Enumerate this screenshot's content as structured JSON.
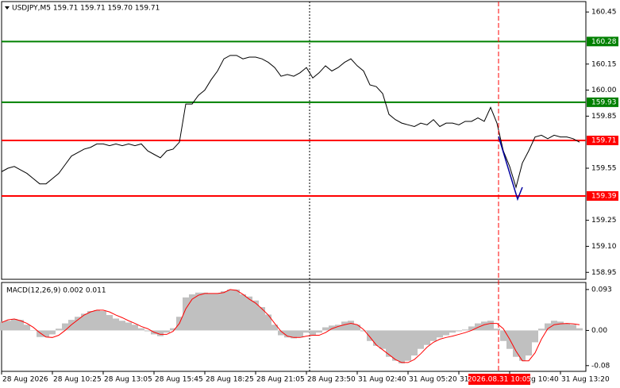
{
  "chart_data": [
    {
      "type": "line",
      "header": "USDJPY,M5  159.71 159.71 159.70 159.71",
      "x": [
        0,
        4,
        8,
        12,
        16,
        20,
        24,
        28,
        32,
        36,
        40,
        44,
        48,
        52,
        56,
        60,
        64,
        68,
        72,
        76,
        80,
        84,
        88,
        92,
        96,
        100,
        104,
        108,
        112,
        116,
        120,
        124,
        128,
        132,
        136,
        140,
        144,
        148,
        152,
        156,
        160,
        164,
        168,
        172,
        176,
        180,
        184,
        188,
        192,
        196,
        200,
        204,
        208,
        212,
        216,
        220,
        224,
        228,
        232,
        236,
        240,
        244,
        248,
        252,
        256,
        260,
        264,
        268,
        272,
        276,
        280,
        284,
        288,
        292,
        296,
        300,
        304,
        308,
        312,
        316,
        320,
        324,
        328,
        332,
        336,
        340,
        344,
        348,
        352,
        356,
        360,
        364
      ],
      "values": [
        159.53,
        159.55,
        159.56,
        159.54,
        159.52,
        159.49,
        159.46,
        159.46,
        159.49,
        159.52,
        159.57,
        159.62,
        159.64,
        159.66,
        159.67,
        159.69,
        159.69,
        159.68,
        159.69,
        159.68,
        159.69,
        159.68,
        159.69,
        159.65,
        159.63,
        159.61,
        159.65,
        159.66,
        159.7,
        159.92,
        159.92,
        159.97,
        160.0,
        160.06,
        160.11,
        160.18,
        160.2,
        160.2,
        160.18,
        160.19,
        160.19,
        160.18,
        160.16,
        160.13,
        160.08,
        160.09,
        160.08,
        160.1,
        160.13,
        160.07,
        160.1,
        160.14,
        160.11,
        160.13,
        160.16,
        160.18,
        160.14,
        160.11,
        160.03,
        160.02,
        159.98,
        159.86,
        159.83,
        159.81,
        159.8,
        159.79,
        159.81,
        159.8,
        159.83,
        159.79,
        159.81,
        159.81,
        159.8,
        159.82,
        159.82,
        159.84,
        159.82,
        159.9,
        159.81,
        159.65,
        159.56,
        159.44,
        159.58,
        159.65,
        159.73,
        159.74,
        159.72,
        159.74,
        159.73,
        159.73,
        159.72,
        159.7
      ],
      "color": "#000000",
      "xlim": [
        0,
        368
      ],
      "xticks": [
        {
          "value": 0,
          "label": "28 Aug 2026"
        },
        {
          "value": 32,
          "label": "28 Aug 10:25"
        },
        {
          "value": 64,
          "label": "28 Aug 13:05"
        },
        {
          "value": 96,
          "label": "28 Aug 15:45"
        },
        {
          "value": 128,
          "label": "28 Aug 18:25"
        },
        {
          "value": 160,
          "label": "28 Aug 21:05"
        },
        {
          "value": 192,
          "label": "28 Aug 23:50"
        },
        {
          "value": 224,
          "label": "31 Aug 02:40"
        },
        {
          "value": 256,
          "label": "31 Aug 05:20"
        },
        {
          "value": 288,
          "label": "31 Aug 08:00"
        },
        {
          "value": 320,
          "label": "31 Aug 10:40"
        },
        {
          "value": 352,
          "label": "31 Aug 13:20"
        }
      ],
      "ylim": [
        158.91,
        160.51
      ],
      "yticks": [
        160.45,
        160.15,
        {
          "value": 160,
          "label": "160.00"
        },
        159.85,
        159.55,
        159.25,
        {
          "value": 159.1,
          "label": "159.10"
        },
        158.95
      ],
      "levels": [
        {
          "value": 160.28,
          "color": "#008000"
        },
        {
          "value": 159.93,
          "color": "#008000"
        },
        {
          "value": 159.71,
          "color": "#ff0000"
        },
        {
          "value": 159.39,
          "color": "#ff0000"
        }
      ],
      "crosshair": {
        "x": 313,
        "label": "2026.08.31 10:05",
        "color": "#ff0000"
      }
    },
    {
      "type": "macd",
      "title": "MACD(12,26,9) 0.002 0.011",
      "ylim": [
        -0.093,
        0.109
      ],
      "yticks": [
        0.093,
        {
          "value": 0,
          "label": "0.00"
        },
        -0.08
      ],
      "histogram": {
        "color": "#c0c0c0",
        "values": [
          0.02,
          0.022,
          0.026,
          0.024,
          0.013,
          0,
          -0.015,
          -0.015,
          -0.009,
          0.004,
          0.016,
          0.024,
          0.031,
          0.038,
          0.044,
          0.046,
          0.044,
          0.035,
          0.027,
          0.022,
          0.018,
          0.013,
          0.005,
          -0.002,
          -0.009,
          -0.013,
          -0.005,
          0.005,
          0.031,
          0.075,
          0.082,
          0.086,
          0.086,
          0.084,
          0.084,
          0.089,
          0.093,
          0.093,
          0.082,
          0.077,
          0.068,
          0.053,
          0.036,
          0.013,
          -0.011,
          -0.016,
          -0.018,
          -0.015,
          -0.005,
          -0.011,
          -0.005,
          0.007,
          0.011,
          0.013,
          0.02,
          0.022,
          0.013,
          -0.002,
          -0.024,
          -0.035,
          -0.042,
          -0.06,
          -0.069,
          -0.075,
          -0.069,
          -0.057,
          -0.042,
          -0.033,
          -0.024,
          -0.016,
          -0.011,
          -0.005,
          -0.002,
          0.002,
          0.009,
          0.016,
          0.02,
          0.022,
          0.004,
          -0.024,
          -0.042,
          -0.06,
          -0.069,
          -0.057,
          -0.027,
          0.004,
          0.016,
          0.022,
          0.02,
          0.016,
          0.013,
          0.005
        ]
      },
      "signal": {
        "color": "#ff0000",
        "values": [
          0.018,
          0.024,
          0.026,
          0.022,
          0.016,
          0.007,
          -0.005,
          -0.015,
          -0.016,
          -0.011,
          0,
          0.013,
          0.024,
          0.035,
          0.042,
          0.046,
          0.046,
          0.042,
          0.035,
          0.029,
          0.022,
          0.016,
          0.009,
          0.004,
          -0.004,
          -0.009,
          -0.009,
          -0.002,
          0.016,
          0.049,
          0.071,
          0.08,
          0.084,
          0.084,
          0.084,
          0.086,
          0.093,
          0.091,
          0.082,
          0.071,
          0.062,
          0.049,
          0.035,
          0.016,
          -0.002,
          -0.013,
          -0.016,
          -0.016,
          -0.013,
          -0.011,
          -0.011,
          -0.005,
          0.004,
          0.009,
          0.013,
          0.016,
          0.013,
          0.002,
          -0.015,
          -0.033,
          -0.044,
          -0.055,
          -0.066,
          -0.073,
          -0.073,
          -0.066,
          -0.053,
          -0.038,
          -0.027,
          -0.02,
          -0.016,
          -0.013,
          -0.009,
          -0.005,
          0,
          0.007,
          0.013,
          0.016,
          0.016,
          0.004,
          -0.02,
          -0.047,
          -0.069,
          -0.069,
          -0.051,
          -0.02,
          0.004,
          0.013,
          0.015,
          0.016,
          0.015,
          0.013
        ]
      }
    }
  ]
}
